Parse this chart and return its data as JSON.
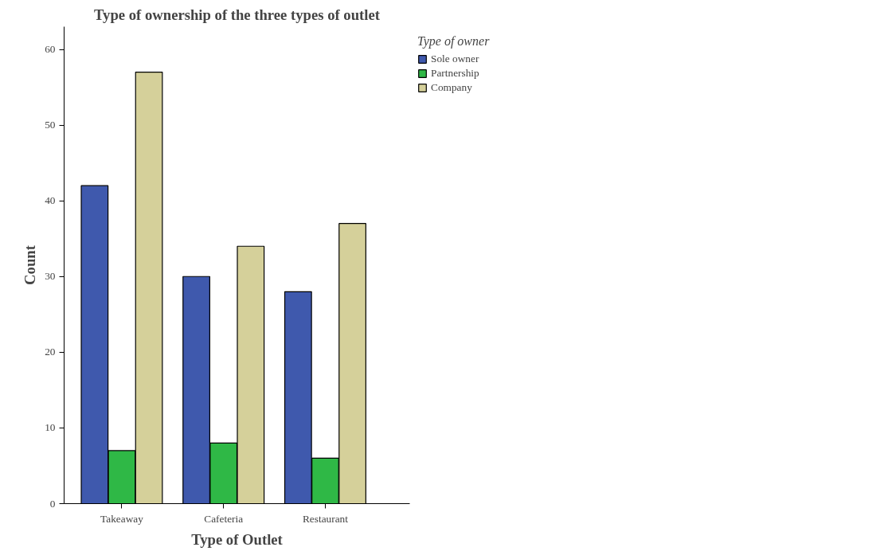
{
  "chart_data": {
    "type": "bar",
    "title": "Type of ownership of the three types of outlet",
    "xlabel": "Type of Outlet",
    "ylabel": "Count",
    "legend_title": "Type of owner",
    "categories": [
      "Takeaway",
      "Cafeteria",
      "Restaurant"
    ],
    "series": [
      {
        "name": "Sole owner",
        "color": "#3f59ad",
        "values": [
          42,
          30,
          28
        ]
      },
      {
        "name": "Partnership",
        "color": "#2fb846",
        "values": [
          7,
          8,
          6
        ]
      },
      {
        "name": "Company",
        "color": "#d5d09a",
        "values": [
          57,
          34,
          37
        ]
      }
    ],
    "ylim": [
      0,
      63
    ],
    "yticks": [
      0,
      10,
      20,
      30,
      40,
      50,
      60
    ],
    "grid": false,
    "legend": "top right"
  }
}
